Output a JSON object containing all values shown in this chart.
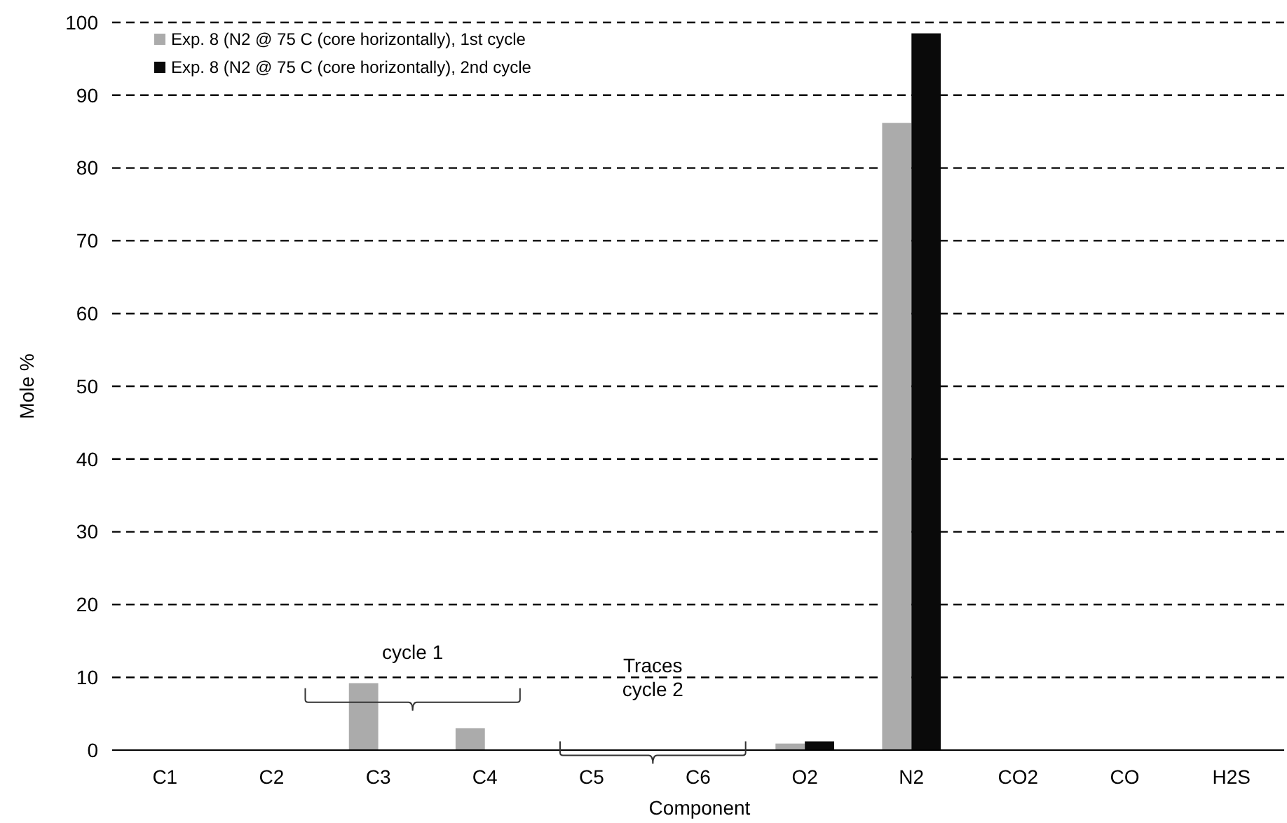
{
  "chart_data": {
    "type": "bar",
    "xlabel": "Component",
    "ylabel": "Mole %",
    "categories": [
      "C1",
      "C2",
      "C3",
      "C4",
      "C5",
      "C6",
      "O2",
      "N2",
      "CO2",
      "CO",
      "H2S"
    ],
    "series": [
      {
        "name": "Exp. 8 (N2 @ 75 C (core horizontally), 1st cycle",
        "color": "#ababab",
        "values": [
          0,
          0,
          9.2,
          3,
          0,
          0,
          0.9,
          86.2,
          0,
          0,
          0
        ]
      },
      {
        "name": "Exp. 8 (N2 @ 75 C (core horizontally), 2nd cycle",
        "color": "#0a0a0a",
        "values": [
          0,
          0,
          0,
          0,
          0,
          0,
          1.2,
          98.5,
          0,
          0,
          0
        ]
      }
    ],
    "ylim": [
      0,
      100
    ],
    "yticks": [
      0,
      10,
      20,
      30,
      40,
      50,
      60,
      70,
      80,
      90,
      100
    ],
    "grid": "y",
    "legend": "top left",
    "annotations": [
      "cycle 1",
      "Traces\ncycle 2"
    ]
  }
}
